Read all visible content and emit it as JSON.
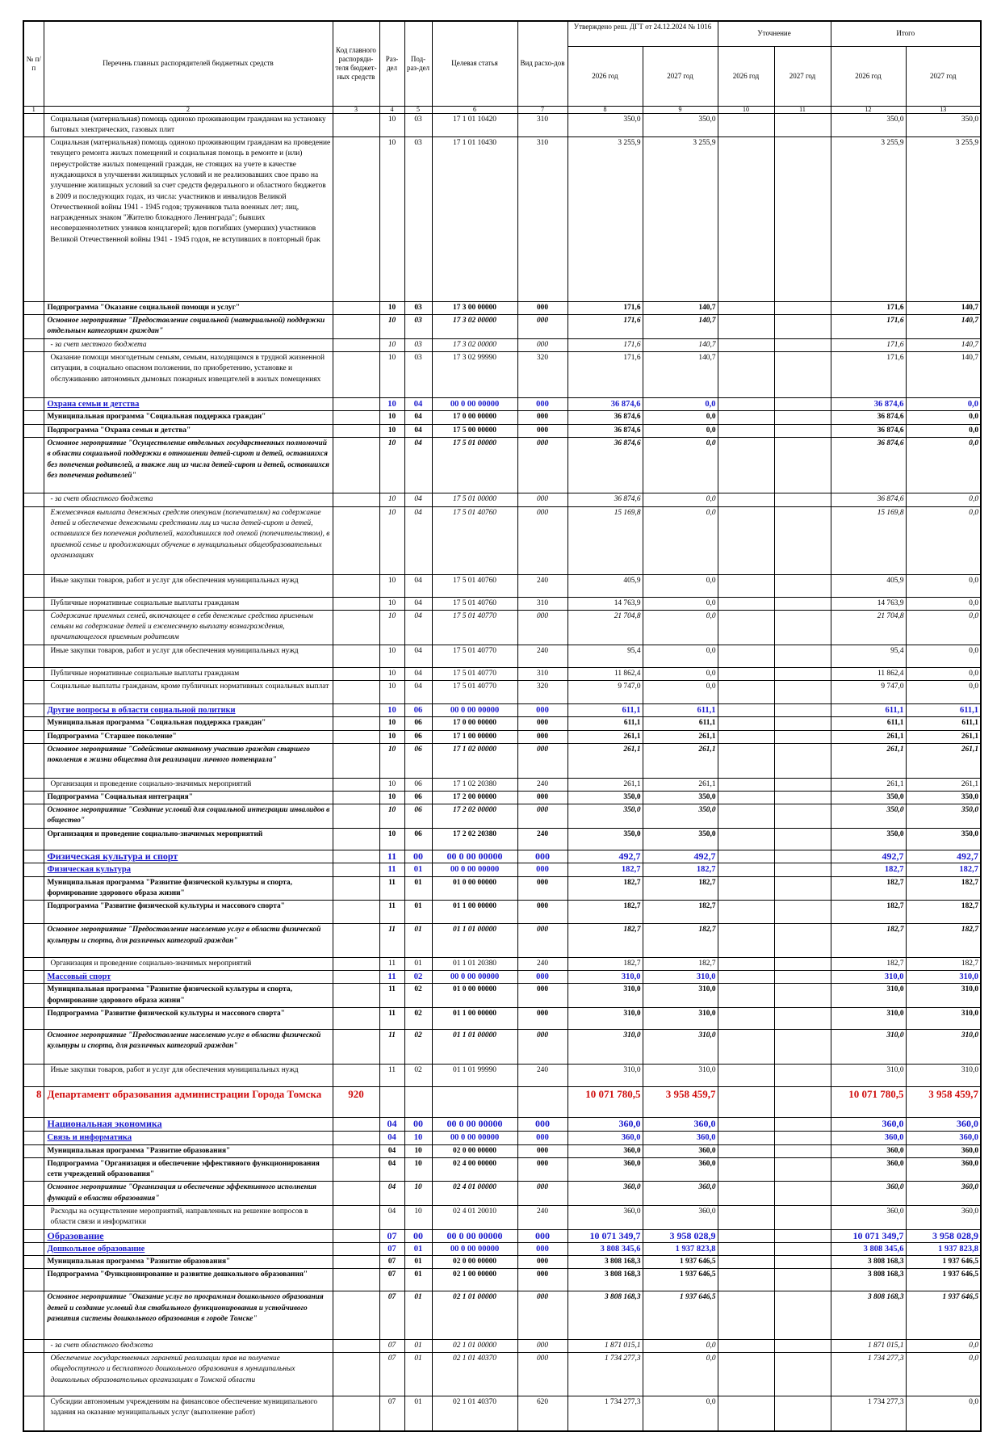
{
  "header": {
    "columns": [
      "№ п/п",
      "Перечень главных распорядителей бюджетных средств",
      "Код главного распоряди-теля бюджет-ных средств",
      "Раз-дел",
      "Под-раз-дел",
      "Целевая статья",
      "Вид расхо-дов"
    ],
    "approved": "Утверждено реш. ДГТ от 24.12.2024 № 1016",
    "clarification": "Уточнение",
    "total": "Итого",
    "years": [
      "2026 год",
      "2027 год",
      "2026 год",
      "2027 год",
      "2026 год",
      "2027 год"
    ],
    "numbers": [
      "1",
      "2",
      "3",
      "4",
      "5",
      "6",
      "7",
      "8",
      "9",
      "10",
      "11",
      "12",
      "13"
    ]
  },
  "rows": [
    [
      null,
      "Социальная (материальная) помощь одиноко проживающим гражданам на установку бытовых электрических, газовых плит",
      null,
      "10",
      "03",
      "17 1 01 10420",
      "310",
      "350,0",
      "350,0",
      null,
      null,
      "350,0",
      "350,0"
    ],
    [
      null,
      "Социальная (материальная) помощь одиноко проживающим гражданам на проведение текущего ремонта жилых помещений и социальная помощь в ремонте и (или) переустройстве жилых помещений граждан, не стоящих на учете в качестве нуждающихся в улучшении жилищных условий и не реализовавших свое право на улучшение жилищных условий за счет средств федерального и областного бюджетов в 2009 и последующих годах, из числа: участников и инвалидов Великой Отечественной войны 1941 - 1945 годов; тружеников тыла военных лет; лиц, награжденных знаком \"Жителю блокадного Ленинграда\"; бывших несовершеннолетних узников концлагерей; вдов погибших (умерших) участников Великой Отечественной войны 1941 - 1945 годов, не вступивших в повторный брак",
      null,
      "10",
      "03",
      "17 1 01 10430",
      "310",
      "3 255,9",
      "3 255,9",
      null,
      null,
      "3 255,9",
      "3 255,9"
    ],
    [
      null,
      "Подпрограмма \"Оказание социальной помощи и услуг\"",
      null,
      "10",
      "03",
      "17 3 00 00000",
      "000",
      "171,6",
      "140,7",
      null,
      null,
      "171,6",
      "140,7"
    ],
    [
      null,
      "Основное мероприятие \"Предоставление социальной (материальной) поддержки отдельным категориям граждан\"",
      null,
      "10",
      "03",
      "17 3 02 00000",
      "000",
      "171,6",
      "140,7",
      null,
      null,
      "171,6",
      "140,7"
    ],
    [
      null,
      "- за счет местного бюджета",
      null,
      "10",
      "03",
      "17 3 02 00000",
      "000",
      "171,6",
      "140,7",
      null,
      null,
      "171,6",
      "140,7"
    ],
    [
      null,
      "Оказание помощи многодетным семьям, семьям, находящимся в трудной жизненной ситуации, в социально опасном положении, по приобретению, установке и обслуживанию автономных дымовых пожарных извещателей в жилых помещениях",
      null,
      "10",
      "03",
      "17 3 02 99990",
      "320",
      "171,6",
      "140,7",
      null,
      null,
      "171,6",
      "140,7"
    ],
    [
      null,
      "Охрана семьи и детства",
      null,
      "10",
      "04",
      "00 0 00 00000",
      "000",
      "36 874,6",
      "0,0",
      null,
      null,
      "36 874,6",
      "0,0"
    ],
    [
      null,
      "Муниципальная программа \"Социальная поддержка граждан\"",
      null,
      "10",
      "04",
      "17 0 00 00000",
      "000",
      "36 874,6",
      "0,0",
      null,
      null,
      "36 874,6",
      "0,0"
    ],
    [
      null,
      "Подпрограмма \"Охрана семьи и детства\"",
      null,
      "10",
      "04",
      "17 5 00 00000",
      "000",
      "36 874,6",
      "0,0",
      null,
      null,
      "36 874,6",
      "0,0"
    ],
    [
      null,
      "Основное мероприятие \"Осуществление отдельных государственных полномочий в области социальной поддержки в отношении детей-сирот и детей, оставшихся без попечения родителей, а также лиц из числа детей-сирот и детей, оставшихся без попечения родителей\"",
      null,
      "10",
      "04",
      "17 5 01 00000",
      "000",
      "36 874,6",
      "0,0",
      null,
      null,
      "36 874,6",
      "0,0"
    ],
    [
      null,
      "- за счет областного бюджета",
      null,
      "10",
      "04",
      "17 5 01 00000",
      "000",
      "36 874,6",
      "0,0",
      null,
      null,
      "36 874,6",
      "0,0"
    ],
    [
      null,
      "Ежемесячная выплата денежных средств опекунам (попечителям) на содержание детей и обеспечение денежными средствами лиц из числа детей-сирот и детей, оставшихся без попечения родителей, находившихся под опекой (попечительством), в приемной семье и продолжающих обучение в муниципальных общеобразовательных организациях",
      null,
      "10",
      "04",
      "17 5 01 40760",
      "000",
      "15 169,8",
      "0,0",
      null,
      null,
      "15 169,8",
      "0,0"
    ],
    [
      null,
      "Иные закупки товаров, работ и услуг для обеспечения муниципальных нужд",
      null,
      "10",
      "04",
      "17 5 01 40760",
      "240",
      "405,9",
      "0,0",
      null,
      null,
      "405,9",
      "0,0"
    ],
    [
      null,
      "Публичные нормативные социальные выплаты гражданам",
      null,
      "10",
      "04",
      "17 5 01 40760",
      "310",
      "14 763,9",
      "0,0",
      null,
      null,
      "14 763,9",
      "0,0"
    ],
    [
      null,
      "Содержание приемных семей, включающее в себя денежные средства приемным семьям на содержание детей и ежемесячную выплату вознаграждения, причитающегося приемным родителям",
      null,
      "10",
      "04",
      "17 5 01 40770",
      "000",
      "21 704,8",
      "0,0",
      null,
      null,
      "21 704,8",
      "0,0"
    ],
    [
      null,
      "Иные закупки товаров, работ и услуг для обеспечения муниципальных нужд",
      null,
      "10",
      "04",
      "17 5 01 40770",
      "240",
      "95,4",
      "0,0",
      null,
      null,
      "95,4",
      "0,0"
    ],
    [
      null,
      "Публичные нормативные социальные выплаты гражданам",
      null,
      "10",
      "04",
      "17 5 01 40770",
      "310",
      "11 862,4",
      "0,0",
      null,
      null,
      "11 862,4",
      "0,0"
    ],
    [
      null,
      "Социальные выплаты гражданам, кроме публичных нормативных социальных выплат",
      null,
      "10",
      "04",
      "17 5 01 40770",
      "320",
      "9 747,0",
      "0,0",
      null,
      null,
      "9 747,0",
      "0,0"
    ],
    [
      null,
      "Другие вопросы в области социальной политики",
      null,
      "10",
      "06",
      "00 0 00 00000",
      "000",
      "611,1",
      "611,1",
      null,
      null,
      "611,1",
      "611,1"
    ],
    [
      null,
      "Муниципальная программа \"Социальная поддержка граждан\"",
      null,
      "10",
      "06",
      "17 0 00 00000",
      "000",
      "611,1",
      "611,1",
      null,
      null,
      "611,1",
      "611,1"
    ],
    [
      null,
      "Подпрограмма \"Старшее поколение\"",
      null,
      "10",
      "06",
      "17 1 00 00000",
      "000",
      "261,1",
      "261,1",
      null,
      null,
      "261,1",
      "261,1"
    ],
    [
      null,
      "Основное мероприятие \"Содействие активному участию граждан старшего поколения в жизни общества для реализации личного потенциала\"",
      null,
      "10",
      "06",
      "17 1 02 00000",
      "000",
      "261,1",
      "261,1",
      null,
      null,
      "261,1",
      "261,1"
    ],
    [
      null,
      "Организация и проведение социально-значимых мероприятий",
      null,
      "10",
      "06",
      "17 1 02 20380",
      "240",
      "261,1",
      "261,1",
      null,
      null,
      "261,1",
      "261,1"
    ],
    [
      null,
      "Подпрограмма \"Социальная интеграция\"",
      null,
      "10",
      "06",
      "17 2 00 00000",
      "000",
      "350,0",
      "350,0",
      null,
      null,
      "350,0",
      "350,0"
    ],
    [
      null,
      "Основное мероприятие \"Создание условий для социальной интеграции инвалидов в общество\"",
      null,
      "10",
      "06",
      "17 2 02 00000",
      "000",
      "350,0",
      "350,0",
      null,
      null,
      "350,0",
      "350,0"
    ],
    [
      null,
      "Организация и проведение социально-значимых мероприятий",
      null,
      "10",
      "06",
      "17 2 02 20380",
      "240",
      "350,0",
      "350,0",
      null,
      null,
      "350,0",
      "350,0"
    ],
    [
      null,
      "Физическая культура и спорт",
      null,
      "11",
      "00",
      "00 0 00 00000",
      "000",
      "492,7",
      "492,7",
      null,
      null,
      "492,7",
      "492,7"
    ],
    [
      null,
      "Физическая культура",
      null,
      "11",
      "01",
      "00 0 00 00000",
      "000",
      "182,7",
      "182,7",
      null,
      null,
      "182,7",
      "182,7"
    ],
    [
      null,
      "Муниципальная программа \"Развитие физической культуры и спорта, формирование здорового образа жизни\"",
      null,
      "11",
      "01",
      "01 0 00 00000",
      "000",
      "182,7",
      "182,7",
      null,
      null,
      "182,7",
      "182,7"
    ],
    [
      null,
      "Подпрограмма \"Развитие физической культуры и массового спорта\"",
      null,
      "11",
      "01",
      "01 1 00 00000",
      "000",
      "182,7",
      "182,7",
      null,
      null,
      "182,7",
      "182,7"
    ],
    [
      null,
      "Основное мероприятие \"Предоставление населению услуг в области физической культуры и спорта, для различных категорий граждан\"",
      null,
      "11",
      "01",
      "01 1 01 00000",
      "000",
      "182,7",
      "182,7",
      null,
      null,
      "182,7",
      "182,7"
    ],
    [
      null,
      "Организация и проведение социально-значимых мероприятий",
      null,
      "11",
      "01",
      "01 1 01 20380",
      "240",
      "182,7",
      "182,7",
      null,
      null,
      "182,7",
      "182,7"
    ],
    [
      null,
      "Массовый спорт",
      null,
      "11",
      "02",
      "00 0 00 00000",
      "000",
      "310,0",
      "310,0",
      null,
      null,
      "310,0",
      "310,0"
    ],
    [
      null,
      "Муниципальная программа \"Развитие физической культуры и спорта, формирование здорового образа жизни\"",
      null,
      "11",
      "02",
      "01 0 00 00000",
      "000",
      "310,0",
      "310,0",
      null,
      null,
      "310,0",
      "310,0"
    ],
    [
      null,
      "Подпрограмма \"Развитие физической культуры и массового спорта\"",
      null,
      "11",
      "02",
      "01 1 00 00000",
      "000",
      "310,0",
      "310,0",
      null,
      null,
      "310,0",
      "310,0"
    ],
    [
      null,
      "Основное мероприятие \"Предоставление населению услуг в области физической культуры и спорта, для различных категорий граждан\"",
      null,
      "11",
      "02",
      "01 1 01 00000",
      "000",
      "310,0",
      "310,0",
      null,
      null,
      "310,0",
      "310,0"
    ],
    [
      null,
      "Иные закупки товаров, работ и услуг для обеспечения муниципальных нужд",
      null,
      "11",
      "02",
      "01 1 01 99990",
      "240",
      "310,0",
      "310,0",
      null,
      null,
      "310,0",
      "310,0"
    ],
    [
      "8",
      "Департамент образования администрации Города Томска",
      "920",
      null,
      null,
      null,
      null,
      "10 071 780,5",
      "3 958 459,7",
      null,
      null,
      "10 071 780,5",
      "3 958 459,7"
    ],
    [
      null,
      "Национальная экономика",
      null,
      "04",
      "00",
      "00 0 00 00000",
      "000",
      "360,0",
      "360,0",
      null,
      null,
      "360,0",
      "360,0"
    ],
    [
      null,
      "Связь и информатика",
      null,
      "04",
      "10",
      "00 0 00 00000",
      "000",
      "360,0",
      "360,0",
      null,
      null,
      "360,0",
      "360,0"
    ],
    [
      null,
      "Муниципальная программа \"Развитие образования\"",
      null,
      "04",
      "10",
      "02 0 00 00000",
      "000",
      "360,0",
      "360,0",
      null,
      null,
      "360,0",
      "360,0"
    ],
    [
      null,
      "Подпрограмма \"Организация и обеспечение эффективного функционирования сети учреждений образования\"",
      null,
      "04",
      "10",
      "02 4 00 00000",
      "000",
      "360,0",
      "360,0",
      null,
      null,
      "360,0",
      "360,0"
    ],
    [
      null,
      "Основное мероприятие \"Организация и обеспечение эффективного исполнения функций в области образования\"",
      null,
      "04",
      "10",
      "02 4 01 00000",
      "000",
      "360,0",
      "360,0",
      null,
      null,
      "360,0",
      "360,0"
    ],
    [
      null,
      "Расходы на осуществление мероприятий, направленных на решение вопросов в области связи и информатики",
      null,
      "04",
      "10",
      "02 4 01 20010",
      "240",
      "360,0",
      "360,0",
      null,
      null,
      "360,0",
      "360,0"
    ],
    [
      null,
      "Образование",
      null,
      "07",
      "00",
      "00 0 00 00000",
      "000",
      "10 071 349,7",
      "3 958 028,9",
      null,
      null,
      "10 071 349,7",
      "3 958 028,9"
    ],
    [
      null,
      "Дошкольное образование",
      null,
      "07",
      "01",
      "00 0 00 00000",
      "000",
      "3 808 345,6",
      "1 937 823,8",
      null,
      null,
      "3 808 345,6",
      "1 937 823,8"
    ],
    [
      null,
      "Муниципальная программа \"Развитие образования\"",
      null,
      "07",
      "01",
      "02 0 00 00000",
      "000",
      "3 808 168,3",
      "1 937 646,5",
      null,
      null,
      "3 808 168,3",
      "1 937 646,5"
    ],
    [
      null,
      "Подпрограмма \"Функционирование и развитие дошкольного образования\"",
      null,
      "07",
      "01",
      "02 1 00 00000",
      "000",
      "3 808 168,3",
      "1 937 646,5",
      null,
      null,
      "3 808 168,3",
      "1 937 646,5"
    ],
    [
      null,
      "Основное мероприятие \"Оказание услуг по программам дошкольного образования детей и создание условий для стабильного функционирования и устойчивого развития системы дошкольного образования в городе Томске\"",
      null,
      "07",
      "01",
      "02 1 01 00000",
      "000",
      "3 808 168,3",
      "1 937 646,5",
      null,
      null,
      "3 808 168,3",
      "1 937 646,5"
    ],
    [
      null,
      "- за счет областного бюджета",
      null,
      "07",
      "01",
      "02 1 01 00000",
      "000",
      "1 871 015,1",
      "0,0",
      null,
      null,
      "1 871 015,1",
      "0,0"
    ],
    [
      null,
      "Обеспечение государственных гарантий реализации прав на получение общедоступного и бесплатного дошкольного образования в муниципальных дошкольных образовательных организациях в Томской области",
      null,
      "07",
      "01",
      "02 1 01 40370",
      "000",
      "1 734 277,3",
      "0,0",
      null,
      null,
      "1 734 277,3",
      "0,0"
    ],
    [
      null,
      "Субсидии автономным учреждениям на финансовое обеспечение муниципального задания на оказание муниципальных услуг (выполнение работ)",
      null,
      "07",
      "01",
      "02 1 01 40370",
      "620",
      "1 734 277,3",
      "0,0",
      null,
      null,
      "1 734 277,3",
      "0,0"
    ]
  ]
}
